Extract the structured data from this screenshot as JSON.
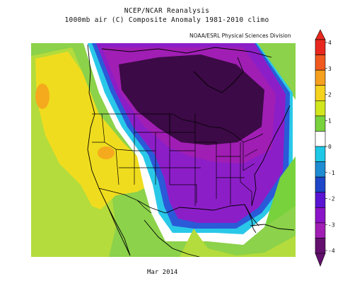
{
  "header": {
    "line1": "NCEP/NCAR Reanalysis",
    "line2": "1000mb air (C) Composite Anomaly 1981-2010 climo",
    "credit": "NOAA/ESRL Physical Sciences Division"
  },
  "footer": {
    "period": "Mar 2014"
  },
  "colorbar": {
    "labels": [
      "4",
      "3",
      "2",
      "1",
      "0",
      "-1",
      "-2",
      "-3",
      "-4"
    ],
    "colors": [
      "#e8281e",
      "#f05a1e",
      "#f5a01e",
      "#f5d21e",
      "#d2e61e",
      "#78d23c",
      "#ffffff",
      "#1ec8e6",
      "#1e8cd2",
      "#1e46c8",
      "#5a14d2",
      "#8c14c8",
      "#a01eb4",
      "#64106e"
    ]
  },
  "map": {
    "colors": {
      "ocean_green": "#8cd24a",
      "west_green": "#b4dc3c",
      "yellow": "#f0dc1e",
      "orange": "#f5aa1e",
      "cyan": "#2ac8e8",
      "blue": "#2a5ad8",
      "purple": "#8c1ec8",
      "deep_purple": "#3c0a46"
    }
  }
}
